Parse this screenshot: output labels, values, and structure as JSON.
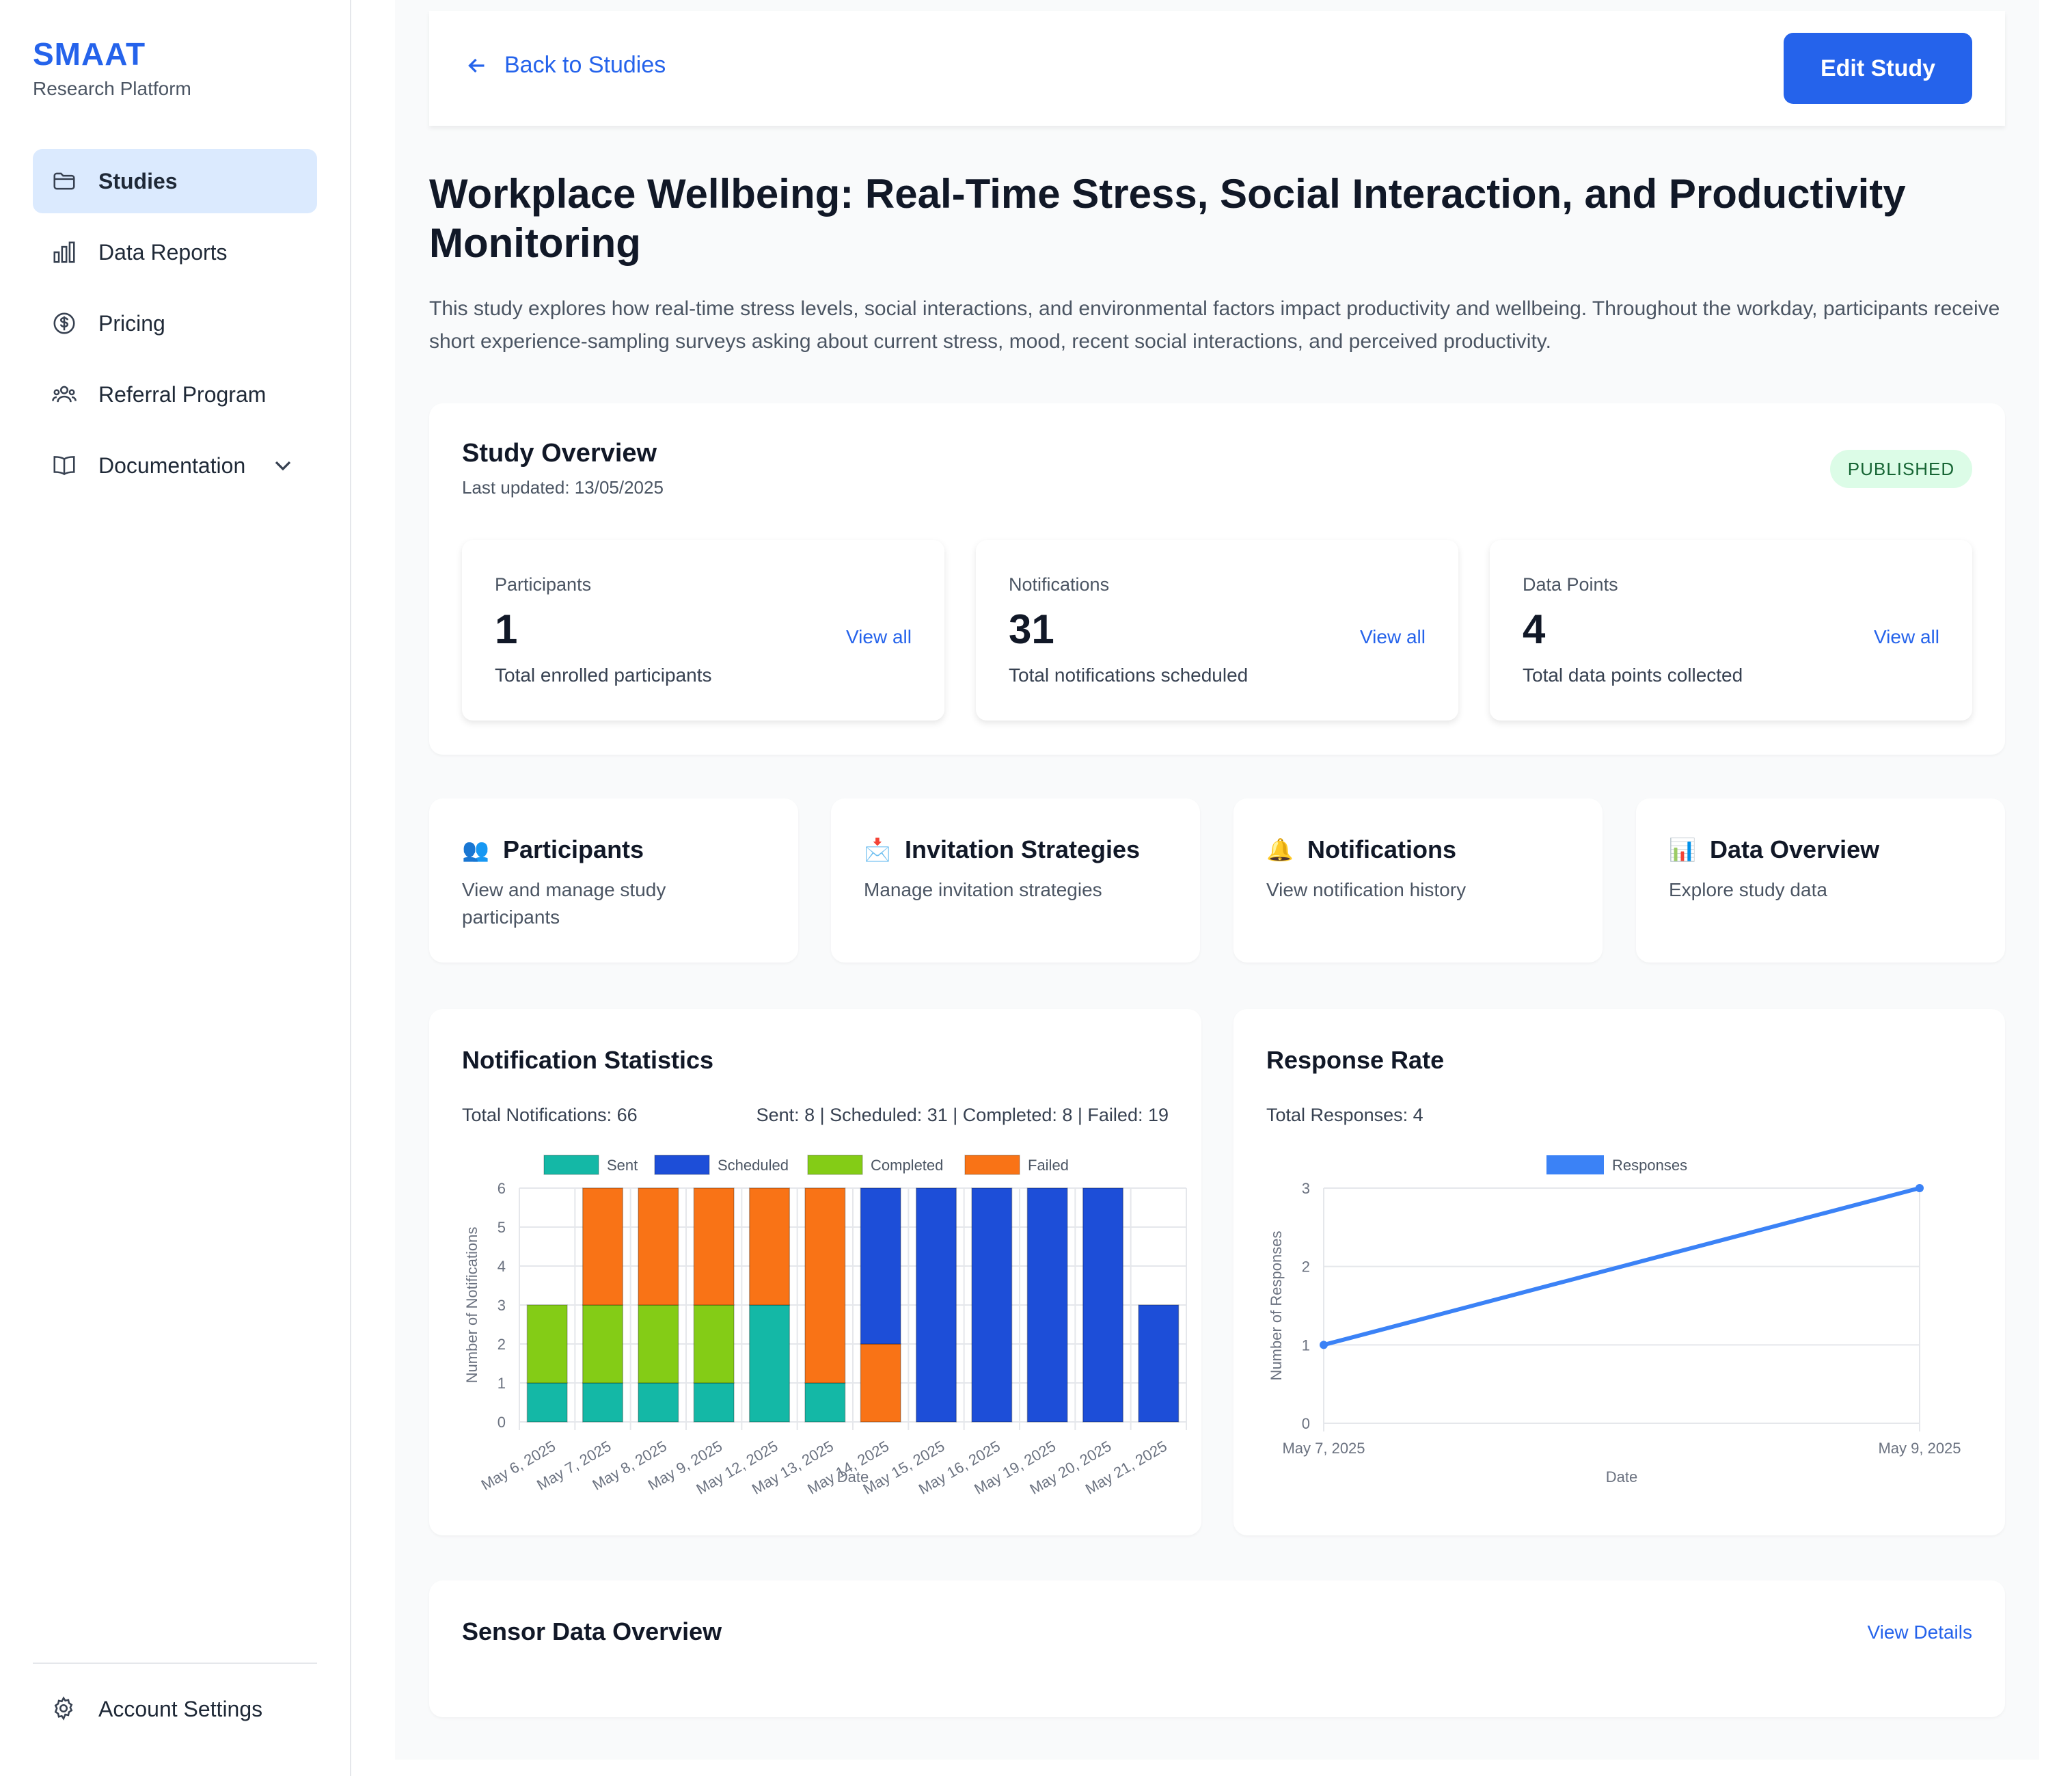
{
  "brand": {
    "name": "SMAAT",
    "subtitle": "Research Platform"
  },
  "sidebar": {
    "items": [
      {
        "label": "Studies",
        "icon": "folder-icon",
        "active": true
      },
      {
        "label": "Data Reports",
        "icon": "bar-chart-icon"
      },
      {
        "label": "Pricing",
        "icon": "dollar-icon"
      },
      {
        "label": "Referral Program",
        "icon": "users-icon"
      },
      {
        "label": "Documentation",
        "icon": "book-icon"
      }
    ],
    "account": "Account Settings"
  },
  "header": {
    "back_label": "Back to Studies",
    "edit_label": "Edit Study"
  },
  "study": {
    "title": "Workplace Wellbeing: Real-Time Stress, Social Interaction, and Productivity Monitoring",
    "description": "This study explores how real-time stress levels, social interactions, and environmental factors impact productivity and wellbeing. Throughout the workday, participants receive short experience-sampling surveys asking about current stress, mood, recent social interactions, and perceived productivity."
  },
  "overview": {
    "title": "Study Overview",
    "last_updated": "Last updated: 13/05/2025",
    "status": "PUBLISHED",
    "stats": [
      {
        "label": "Participants",
        "value": "1",
        "link": "View all",
        "footer": "Total enrolled participants"
      },
      {
        "label": "Notifications",
        "value": "31",
        "link": "View all",
        "footer": "Total notifications scheduled"
      },
      {
        "label": "Data Points",
        "value": "4",
        "link": "View all",
        "footer": "Total data points collected"
      }
    ]
  },
  "quick_links": [
    {
      "emoji": "👥",
      "title": "Participants",
      "desc": "View and manage study participants"
    },
    {
      "emoji": "📩",
      "title": "Invitation Strategies",
      "desc": "Manage invitation strategies"
    },
    {
      "emoji": "🔔",
      "title": "Notifications",
      "desc": "View notification history"
    },
    {
      "emoji": "📊",
      "title": "Data Overview",
      "desc": "Explore study data"
    }
  ],
  "notification_stats": {
    "title": "Notification Statistics",
    "total": "Total Notifications: 66",
    "breakdown": "Sent: 8 | Scheduled: 31 | Completed: 8 | Failed: 19"
  },
  "response_rate": {
    "title": "Response Rate",
    "total": "Total Responses: 4"
  },
  "sensor": {
    "title": "Sensor Data Overview",
    "link": "View Details"
  },
  "colors": {
    "sent": "#14b8a6",
    "scheduled": "#1d4ed8",
    "completed": "#84cc16",
    "failed": "#f97316",
    "responses": "#3b82f6"
  },
  "chart_data": [
    {
      "type": "bar",
      "stacked": true,
      "title": "Notification Statistics",
      "xlabel": "Date",
      "ylabel": "Number of Notifications",
      "ylim": [
        0,
        6
      ],
      "yticks": [
        0,
        1,
        2,
        3,
        4,
        5,
        6
      ],
      "categories": [
        "May 6, 2025",
        "May 7, 2025",
        "May 8, 2025",
        "May 9, 2025",
        "May 12, 2025",
        "May 13, 2025",
        "May 14, 2025",
        "May 15, 2025",
        "May 16, 2025",
        "May 19, 2025",
        "May 20, 2025",
        "May 21, 2025"
      ],
      "series": [
        {
          "name": "Sent",
          "color_key": "sent",
          "values": [
            1,
            1,
            1,
            1,
            3,
            1,
            0,
            0,
            0,
            0,
            0,
            0
          ]
        },
        {
          "name": "Scheduled",
          "color_key": "scheduled",
          "values": [
            0,
            0,
            0,
            0,
            0,
            0,
            4,
            6,
            6,
            6,
            6,
            3
          ]
        },
        {
          "name": "Completed",
          "color_key": "completed",
          "values": [
            2,
            2,
            2,
            2,
            0,
            0,
            0,
            0,
            0,
            0,
            0,
            0
          ]
        },
        {
          "name": "Failed",
          "color_key": "failed",
          "values": [
            0,
            3,
            3,
            3,
            3,
            5,
            2,
            0,
            0,
            0,
            0,
            0
          ]
        }
      ],
      "legend": "top"
    },
    {
      "type": "line",
      "title": "Response Rate",
      "xlabel": "Date",
      "ylabel": "Number of Responses",
      "ylim": [
        0,
        3
      ],
      "yticks": [
        0,
        1,
        2,
        3
      ],
      "x": [
        "May 7, 2025",
        "May 9, 2025"
      ],
      "series": [
        {
          "name": "Responses",
          "color_key": "responses",
          "values": [
            1,
            3
          ]
        }
      ],
      "legend": "top"
    }
  ]
}
